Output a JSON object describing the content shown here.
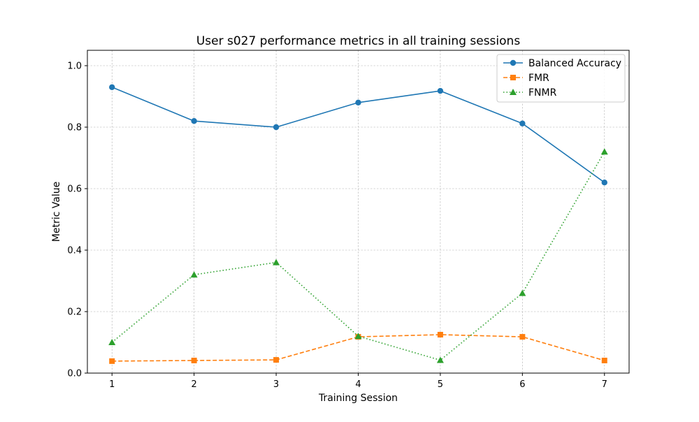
{
  "chart_data": {
    "type": "line",
    "title": "User s027 performance metrics in all training sessions",
    "xlabel": "Training Session",
    "ylabel": "Metric Value",
    "x": [
      1,
      2,
      3,
      4,
      5,
      6,
      7
    ],
    "xlim": [
      0.7,
      7.3
    ],
    "ylim": [
      0.0,
      1.05
    ],
    "xticks": [
      "1",
      "2",
      "3",
      "4",
      "5",
      "6",
      "7"
    ],
    "yticks": [
      "0.0",
      "0.2",
      "0.4",
      "0.6",
      "0.8",
      "1.0"
    ],
    "ytick_values": [
      0.0,
      0.2,
      0.4,
      0.6,
      0.8,
      1.0
    ],
    "grid": true,
    "legend_position": "top-right",
    "series": [
      {
        "name": "Balanced Accuracy",
        "values": [
          0.93,
          0.82,
          0.8,
          0.88,
          0.918,
          0.812,
          0.62
        ],
        "color": "#1f77b4",
        "marker": "circle",
        "linestyle": "solid"
      },
      {
        "name": "FMR",
        "values": [
          0.039,
          0.041,
          0.043,
          0.118,
          0.125,
          0.118,
          0.041
        ],
        "color": "#ff7f0e",
        "marker": "square",
        "linestyle": "dashed"
      },
      {
        "name": "FNMR",
        "values": [
          0.1,
          0.32,
          0.36,
          0.12,
          0.042,
          0.26,
          0.72
        ],
        "color": "#2ca02c",
        "marker": "triangle",
        "linestyle": "dotted"
      }
    ]
  }
}
